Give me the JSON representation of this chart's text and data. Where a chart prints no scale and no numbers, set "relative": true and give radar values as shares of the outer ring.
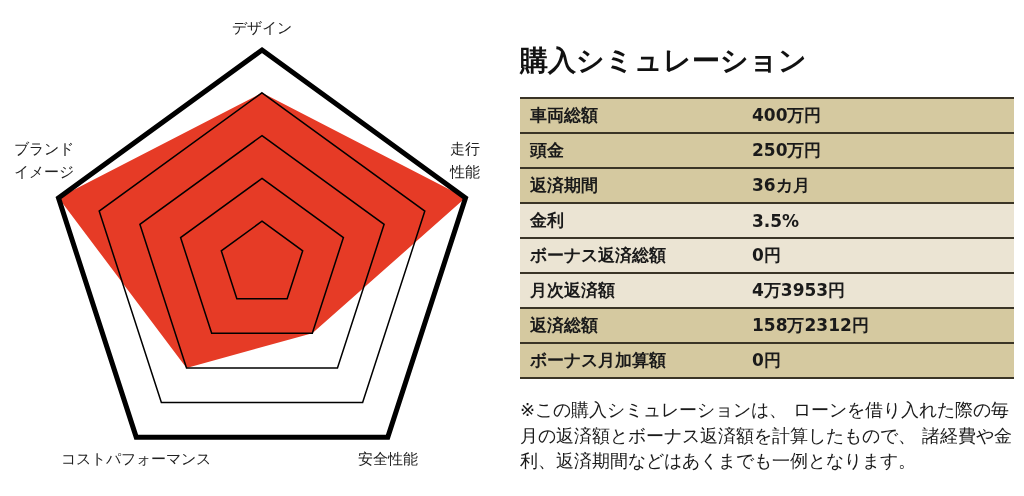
{
  "chart_data": [
    {
      "type": "radar",
      "categories": [
        "デザイン",
        "走行性能",
        "安全性能",
        "コストパフォーマンス",
        "ブランドイメージ"
      ],
      "relative": true,
      "grid": true,
      "marker": "none",
      "series": [
        {
          "color": "#e63b26",
          "values": [
            0.8,
            1,
            0.4,
            0.6,
            1
          ]
        }
      ]
    },
    {
      "type": "other",
      "title": "購入シミュレーション",
      "categories": [
        "車両総額",
        "頭金",
        "返済期間",
        "金利",
        "ボーナス返済総額",
        "月次返済額",
        "返済総額",
        "ボーナス月加算額"
      ],
      "value_labels": [
        "400万円",
        "250万円",
        "36カ月",
        "3.5%",
        "0円",
        "4万3953円",
        "158万2312円",
        "0円"
      ],
      "colors": [
        "#d5c9a0",
        "#d5c9a0",
        "#d5c9a0",
        "#ebe4d3",
        "#ebe4d3",
        "#ebe4d3",
        "#d5c9a0",
        "#d5c9a0"
      ],
      "annotations": [
        "※この購入シミュレーションは、 ローンを借り入れた際の毎月の返済額とボーナス返済額を計算したもので、 諸経費や金利、返済期間などはあくまでも一例となります。"
      ]
    }
  ]
}
